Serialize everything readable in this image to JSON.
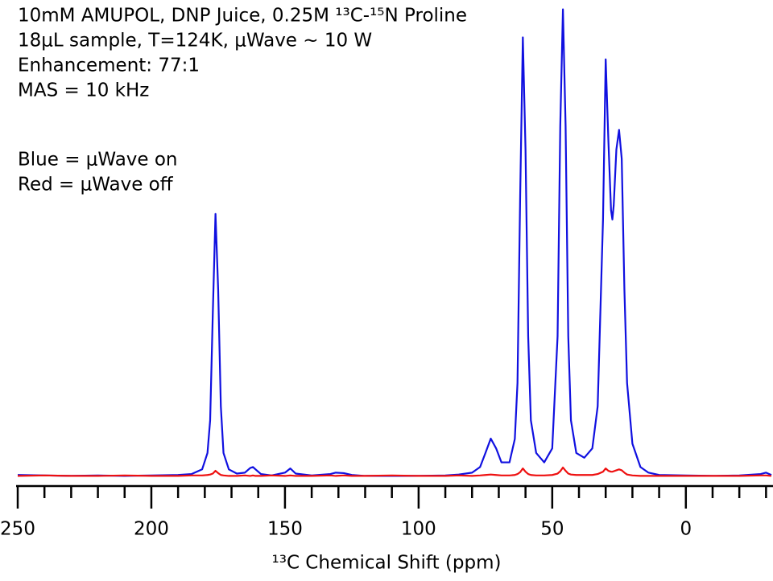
{
  "chart_data": {
    "type": "line",
    "annotations": [
      "10mM AMUPOL, DNP Juice, 0.25M ¹³C-¹⁵N Proline",
      "18μL sample, T=124K, μWave ~ 10 W",
      "Enhancement: 77:1",
      "MAS = 10 kHz"
    ],
    "x_label": "¹³C Chemical Shift (ppm)",
    "xlim": [
      250,
      -32
    ],
    "ylim": [
      -2,
      102
    ],
    "xticks": [
      250,
      200,
      150,
      100,
      50,
      0
    ],
    "xminor_ticks": [
      240,
      230,
      220,
      210,
      190,
      180,
      170,
      160,
      140,
      130,
      120,
      110,
      90,
      80,
      70,
      60,
      40,
      30,
      20,
      10,
      -10,
      -20,
      -30
    ],
    "x": [
      250,
      240,
      230,
      220,
      210,
      200,
      190,
      185,
      181,
      179,
      178,
      177,
      176,
      175,
      174,
      173,
      171,
      168,
      165,
      163,
      162,
      161,
      159,
      155,
      150,
      148,
      146,
      140,
      133,
      131,
      128,
      125,
      120,
      110,
      100,
      90,
      85,
      80,
      77,
      75,
      73,
      71,
      69,
      66,
      64,
      63,
      62,
      61,
      60,
      59,
      58,
      56,
      53,
      50,
      48,
      47,
      46,
      45,
      44,
      43,
      41,
      38,
      35,
      33,
      31,
      30,
      29,
      28,
      27.5,
      27,
      26,
      25,
      24,
      23,
      22,
      20,
      17,
      14,
      10,
      0,
      -10,
      -20,
      -28,
      -30,
      -32
    ],
    "series": [
      {
        "name": "Blue = μWave on",
        "color": "#1010e0",
        "values": [
          0.3,
          0.2,
          0.1,
          0.2,
          0.1,
          0.2,
          0.3,
          0.5,
          1.5,
          5,
          12,
          35,
          56.2,
          40,
          15,
          5,
          1.5,
          0.6,
          0.8,
          1.8,
          2,
          1.5,
          0.5,
          0.2,
          0.8,
          1.7,
          0.6,
          0.2,
          0.5,
          0.8,
          0.7,
          0.3,
          0.1,
          0.1,
          0.1,
          0.2,
          0.4,
          0.8,
          2,
          5,
          8.1,
          6,
          3,
          3,
          8,
          20,
          60,
          94,
          70,
          30,
          12,
          5,
          3,
          6,
          30,
          75,
          100,
          75,
          30,
          12,
          5,
          4,
          6,
          15,
          55,
          89.3,
          72,
          57,
          55,
          58,
          70,
          74.2,
          68,
          40,
          20,
          7,
          2,
          0.8,
          0.3,
          0.2,
          0.1,
          0.2,
          0.5,
          0.8,
          0.3
        ]
      },
      {
        "name": "Red = μWave off",
        "color": "#ee1010",
        "values": [
          0.1,
          0.2,
          0.1,
          0.1,
          0.2,
          0.1,
          0.1,
          0.2,
          0.2,
          0.3,
          0.4,
          0.6,
          1.2,
          0.7,
          0.3,
          0.2,
          0.1,
          0.1,
          0.2,
          0.1,
          0.2,
          0.1,
          0.1,
          0.2,
          0.1,
          0.2,
          0.1,
          0.1,
          0.2,
          0.1,
          0.2,
          0.1,
          0.1,
          0.2,
          0.1,
          0.1,
          0.2,
          0.1,
          0.2,
          0.3,
          0.4,
          0.3,
          0.2,
          0.2,
          0.3,
          0.5,
          0.9,
          1.7,
          1.0,
          0.5,
          0.3,
          0.2,
          0.2,
          0.3,
          0.6,
          1.1,
          1.9,
          1.2,
          0.6,
          0.4,
          0.3,
          0.3,
          0.3,
          0.5,
          1.0,
          1.7,
          1.2,
          1.0,
          1.0,
          1.1,
          1.3,
          1.5,
          1.3,
          0.8,
          0.4,
          0.2,
          0.1,
          0.1,
          0.1,
          0.1,
          0.1,
          0.1,
          0.2,
          0.2,
          0.1
        ]
      }
    ]
  }
}
